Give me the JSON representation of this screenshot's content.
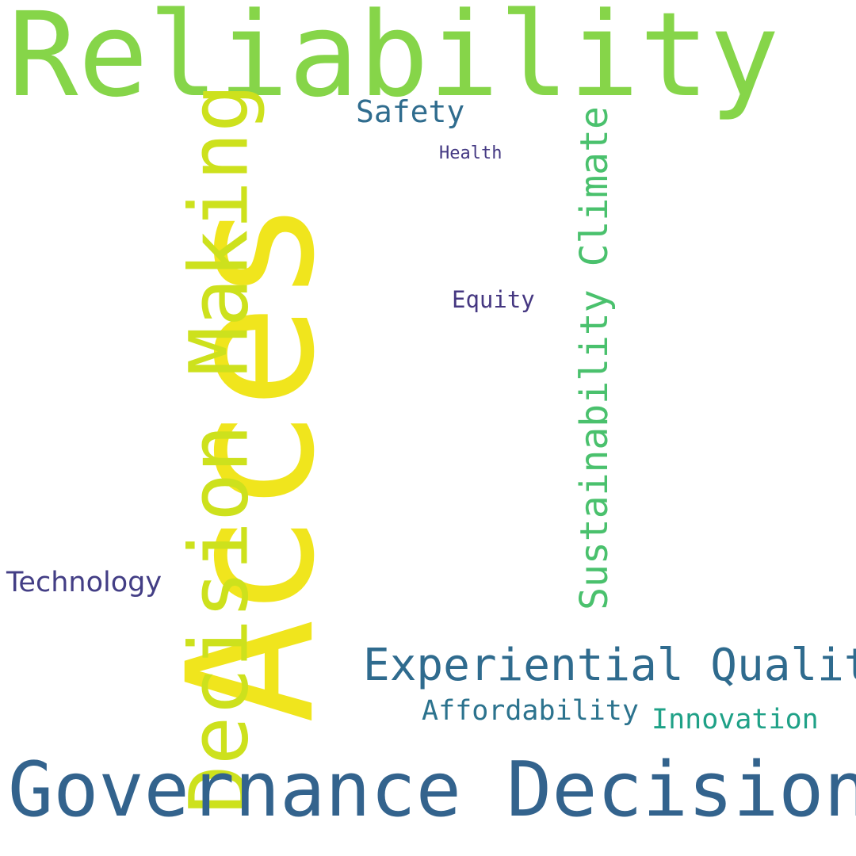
{
  "words": [
    {
      "key": "reliability",
      "text": "Reliability",
      "color": "#86d549"
    },
    {
      "key": "access",
      "text": "Acces",
      "color": "#f0e51d"
    },
    {
      "key": "decision-making",
      "text": "Decision Making",
      "color": "#cde11d"
    },
    {
      "key": "sustainability-climate",
      "text": "Sustainability Climate",
      "color": "#4ac16d"
    },
    {
      "key": "safety",
      "text": "Safety",
      "color": "#2f6c8e"
    },
    {
      "key": "health",
      "text": "Health",
      "color": "#443983"
    },
    {
      "key": "equity",
      "text": "Equity",
      "color": "#453781"
    },
    {
      "key": "technology",
      "text": "Technology",
      "color": "#433e85"
    },
    {
      "key": "experiential-quality",
      "text": "Experiential Quality",
      "color": "#2f6b8e"
    },
    {
      "key": "affordability",
      "text": "Affordability",
      "color": "#2c738e"
    },
    {
      "key": "innovation",
      "text": "Innovation",
      "color": "#1fa187"
    },
    {
      "key": "governance-decision",
      "text": "Governance Decision",
      "color": "#33638d"
    }
  ]
}
